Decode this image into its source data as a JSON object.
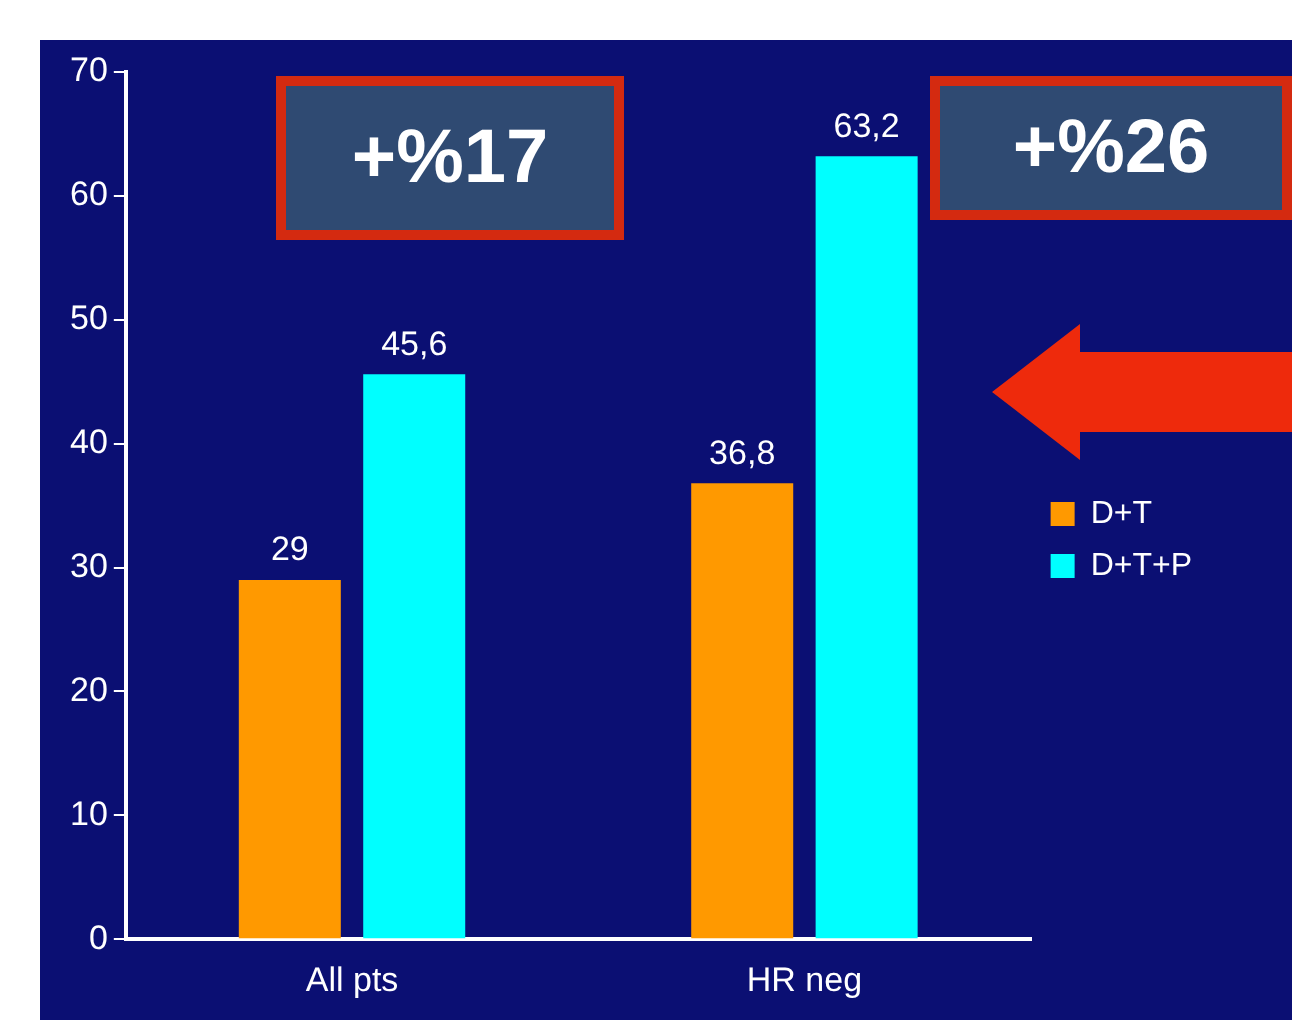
{
  "chart_data": {
    "type": "bar",
    "categories": [
      "All pts",
      "HR neg"
    ],
    "series": [
      {
        "name": "D+T",
        "color": "#ff9900",
        "values": [
          29,
          36.8
        ],
        "value_labels": [
          "29",
          "36,8"
        ]
      },
      {
        "name": "D+T+P",
        "color": "#00ffff",
        "values": [
          45.6,
          63.2
        ],
        "value_labels": [
          "45,6",
          "63,2"
        ]
      }
    ],
    "ylim": [
      0,
      70
    ],
    "yticks": [
      0,
      10,
      20,
      30,
      40,
      50,
      60,
      70
    ],
    "grid": false,
    "legend": "right",
    "annotations": [
      "+%17",
      "+%26"
    ]
  }
}
